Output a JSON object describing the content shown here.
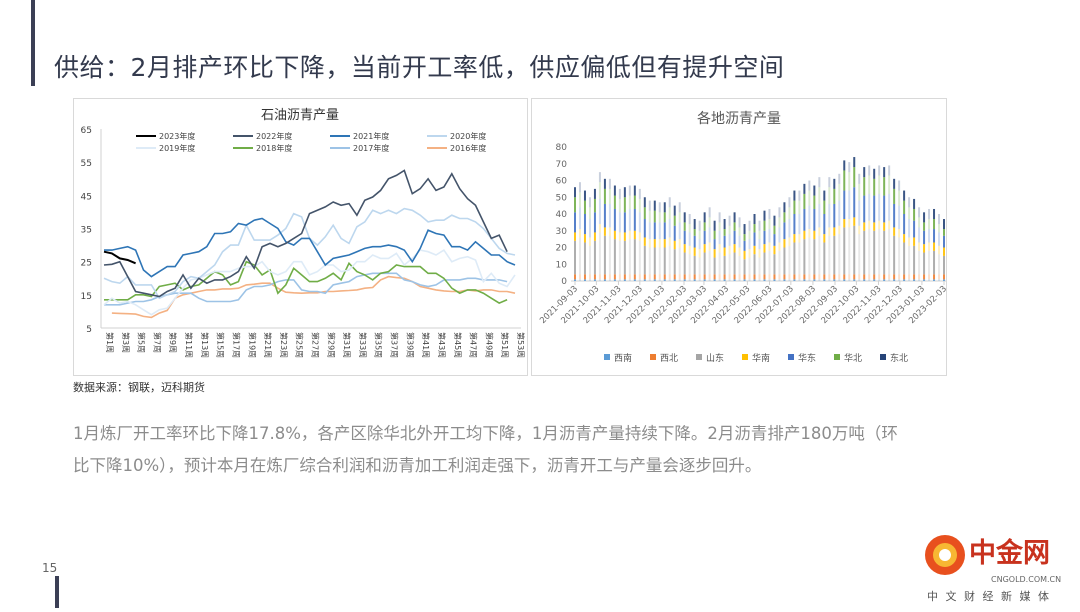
{
  "title": "供给：2月排产环比下降，当前开工率低，供应偏低但有提升空间",
  "source": "数据来源：钢联，迈科期货",
  "paragraph": {
    "line1": "1月炼厂开工率环比下降17.8%，各产区除华北外开工均下降，1月沥青产量持续下降。2月沥青排产180万吨（环",
    "line2": "比下降10%），预计本月在炼厂综合利润和沥青加工利润走强下，沥青开工与产量会逐步回升。"
  },
  "page_number": "15",
  "logo": {
    "name": "中金网",
    "domain": "CNGOLD.COM.CN",
    "tagline": "中 文 财 经 新 媒 体",
    "watermark": "迈科期货"
  },
  "colors": {
    "accent": "#3b3f55"
  },
  "chart_data": [
    {
      "type": "line",
      "title": "石油沥青产量",
      "ylim": [
        5,
        65
      ],
      "yticks": [
        5,
        15,
        25,
        35,
        45,
        55,
        65
      ],
      "grid": false,
      "legend": "top",
      "xticks": [
        "第1周",
        "第3周",
        "第5周",
        "第7周",
        "第9周",
        "第11周",
        "第13周",
        "第15周",
        "第17周",
        "第19周",
        "第21周",
        "第23周",
        "第25周",
        "第27周",
        "第29周",
        "第31周",
        "第33周",
        "第35周",
        "第37周",
        "第39周",
        "第41周",
        "第43周",
        "第45周",
        "第47周",
        "第49周",
        "第51周",
        "第53周"
      ],
      "series": [
        {
          "name": "2023年度",
          "color": "#000000",
          "values": [
            28,
            27.5,
            26,
            25.5,
            24.5
          ]
        },
        {
          "name": "2022年度",
          "color": "#44546a",
          "values": [
            24,
            24.2,
            25,
            20.5,
            16,
            15.5,
            15,
            14.5,
            16,
            17,
            21,
            17,
            20,
            18.5,
            19.5,
            19.5,
            20.5,
            22,
            26.5,
            23,
            29.5,
            30.5,
            29.5,
            30.5,
            32,
            33.5,
            39.5,
            40.5,
            41.5,
            43,
            42,
            42.5,
            39,
            43.5,
            44.5,
            46.5,
            50,
            51,
            52.5,
            45.5,
            47,
            50,
            46.5,
            47.5,
            51.5,
            47,
            44,
            42,
            37,
            32,
            33,
            28
          ]
        },
        {
          "name": "2021年度",
          "color": "#2e75b6",
          "values": [
            28.5,
            28.5,
            29,
            29.5,
            28.5,
            22.5,
            20.5,
            22,
            23.5,
            23.5,
            27,
            27.5,
            28,
            29.5,
            33.5,
            33.5,
            34,
            36.5,
            36,
            37.5,
            38,
            36.5,
            35,
            31,
            30,
            32,
            32,
            28,
            24,
            26,
            26.5,
            27,
            28,
            29,
            29.5,
            29.5,
            30,
            29.5,
            28.5,
            25,
            29,
            34.5,
            33.5,
            33,
            29.5,
            29.5,
            28.5,
            31,
            29,
            27,
            27,
            25,
            24
          ]
        },
        {
          "name": "2020年度",
          "color": "#bdd7ee",
          "values": [
            20,
            19,
            18.5,
            20.5,
            18,
            18,
            18,
            14,
            15,
            16,
            19,
            20.5,
            20,
            22,
            24,
            28,
            30,
            30,
            36,
            31.5,
            31.5,
            31.5,
            33,
            35,
            39.5,
            38.5,
            32,
            30,
            32.5,
            36,
            32,
            30.5,
            35.5,
            37,
            40.5,
            39.5,
            40.5,
            39.5,
            41,
            40.5,
            39,
            37,
            37.5,
            37.5,
            39,
            38,
            38,
            37,
            35,
            32,
            29,
            27.5,
            27
          ]
        },
        {
          "name": "2019年度",
          "color": "#deebf7",
          "values": [
            12,
            14,
            12.5,
            13,
            12,
            10.5,
            9,
            10.5,
            11,
            14,
            17,
            19.5,
            20,
            21,
            22,
            22,
            22,
            23,
            23.5,
            23.5,
            25,
            22,
            21,
            22,
            25,
            25,
            21,
            22,
            24,
            24,
            22,
            22.5,
            25,
            25,
            27,
            26,
            26,
            27.5,
            24,
            26,
            28.5,
            28,
            27,
            28.5,
            25,
            26,
            26.5,
            25.5,
            19,
            21.5,
            18.5,
            17.5,
            21
          ]
        },
        {
          "name": "2018年度",
          "color": "#70ad47",
          "values": [
            13.5,
            13.5,
            13.5,
            13.5,
            15,
            15,
            14.5,
            17.5,
            18,
            18.5,
            16.5,
            17.5,
            18,
            20,
            22,
            21,
            18,
            19,
            25,
            24,
            21,
            22.5,
            15.5,
            18,
            23,
            21,
            19,
            19,
            20,
            21.5,
            19.5,
            24.5,
            22,
            21,
            19.5,
            21.5,
            22,
            24,
            23.5,
            23.5,
            23.5,
            21.5,
            21.5,
            20,
            17,
            15.5,
            16.5,
            16.5,
            15.5,
            14,
            12.5,
            13.5
          ]
        },
        {
          "name": "2017年度",
          "color": "#9dc3e6",
          "values": [
            12,
            12,
            12,
            12.5,
            13,
            13,
            13.5,
            14.5,
            15,
            15.5,
            15.5,
            15.5,
            14,
            13,
            13,
            13,
            13,
            13.5,
            16.5,
            17.5,
            17.5,
            18,
            19,
            19.5,
            19.5,
            16.5,
            16,
            16,
            15.5,
            18,
            18.5,
            19,
            20.5,
            21,
            21.5,
            21.5,
            21.5,
            21.5,
            19.5,
            19,
            18,
            17.5,
            18,
            19.5,
            19.5,
            19.5,
            20,
            20,
            19.5,
            19.5,
            19.5,
            19
          ]
        },
        {
          "name": "2016年度",
          "color": "#f4b183",
          "values": [
            null,
            9.5,
            9.4,
            9.3,
            9.2,
            8.5,
            8.2,
            9.5,
            10.3,
            14,
            15,
            15.5,
            16,
            16.5,
            16.5,
            16.8,
            16.8,
            17,
            18,
            18.2,
            18.5,
            18.5,
            17,
            15.8,
            15.6,
            15.5,
            15.6,
            15.6,
            16,
            16,
            16.2,
            16.3,
            16.5,
            17,
            17.2,
            19.5,
            20.5,
            20.2,
            20,
            19,
            17.5,
            17,
            16.5,
            16.2,
            16,
            16,
            16.5,
            16.2,
            16.5,
            16.5,
            16,
            16,
            15.5
          ]
        }
      ]
    },
    {
      "type": "bar",
      "stacked": true,
      "title": "各地沥青产量",
      "ylim": [
        0,
        80
      ],
      "yticks": [
        0,
        10,
        20,
        30,
        40,
        50,
        60,
        70,
        80
      ],
      "grid": false,
      "legend": "bottom",
      "x_start": "2021-09-03",
      "x_interval": "weekly",
      "xticks": [
        "2021-09-03",
        "2021-10-03",
        "2021-11-03",
        "2021-12-03",
        "2022-01-03",
        "2022-02-03",
        "2022-03-03",
        "2022-04-03",
        "2022-05-03",
        "2022-06-03",
        "2022-07-03",
        "2022-08-03",
        "2022-09-03",
        "2022-10-03",
        "2022-11-03",
        "2022-12-03",
        "2023-01-03",
        "2023-02-03"
      ],
      "series": [
        {
          "name": "西南",
          "color": "#5b9bd5",
          "values": [
            1,
            1,
            1,
            1,
            1,
            1,
            1,
            1,
            1,
            1,
            1,
            1,
            1,
            1,
            1,
            1,
            1,
            1,
            1,
            1,
            1,
            1,
            1,
            1,
            1,
            1,
            1,
            1,
            1,
            1,
            1,
            1,
            1,
            1,
            1,
            1,
            1,
            1,
            1,
            1,
            1,
            1,
            1,
            1,
            1,
            1,
            1,
            1,
            1,
            1,
            1,
            1,
            1,
            1,
            1,
            1,
            1,
            1,
            1,
            1,
            1,
            1,
            1,
            1,
            1,
            1,
            1,
            1,
            1,
            1,
            1,
            1,
            1,
            1,
            1
          ]
        },
        {
          "name": "西北",
          "color": "#ed7d31",
          "values": [
            3,
            3,
            3,
            3,
            3,
            3,
            3,
            3,
            3,
            3,
            3,
            3,
            3,
            3,
            3,
            3,
            3,
            3,
            3,
            3,
            3,
            3,
            3,
            3,
            3,
            3,
            3,
            3,
            3,
            3,
            3,
            3,
            3,
            3,
            3,
            3,
            3,
            3,
            3,
            3,
            3,
            3,
            3,
            3,
            3,
            3,
            3,
            3,
            3,
            3,
            3,
            3,
            3,
            3,
            3,
            3,
            3,
            3,
            3,
            3,
            3,
            3,
            3,
            3,
            3,
            3,
            3,
            3,
            3,
            3,
            3,
            3,
            3,
            3,
            3
          ]
        },
        {
          "name": "山东",
          "color": "#a5a5a5",
          "values": [
            20,
            22,
            19,
            17,
            20,
            25,
            23,
            23,
            21,
            20,
            20,
            21,
            21,
            20,
            17,
            16,
            16,
            16,
            16,
            17,
            15,
            16,
            13,
            12,
            11,
            10,
            13,
            14,
            10,
            13,
            11,
            12,
            13,
            11,
            9,
            10,
            12,
            10,
            13,
            14,
            12,
            14,
            16,
            17,
            19,
            19,
            21,
            22,
            21,
            23,
            19,
            23,
            23,
            24,
            28,
            28,
            29,
            24,
            26,
            27,
            26,
            27,
            26,
            27,
            23,
            22,
            19,
            17,
            17,
            14,
            13,
            14,
            14,
            12,
            11
          ]
        },
        {
          "name": "华南",
          "color": "#ffc000",
          "values": [
            5,
            5,
            5,
            5,
            5,
            5,
            5,
            5,
            5,
            5,
            5,
            5,
            5,
            5,
            5,
            5,
            5,
            5,
            5,
            5,
            5,
            5,
            5,
            5,
            5,
            5,
            5,
            5,
            5,
            5,
            5,
            5,
            5,
            5,
            5,
            5,
            5,
            5,
            5,
            5,
            5,
            5,
            5,
            5,
            5,
            5,
            5,
            5,
            5,
            5,
            5,
            5,
            5,
            5,
            5,
            5,
            5,
            5,
            5,
            5,
            5,
            5,
            5,
            5,
            5,
            5,
            5,
            5,
            5,
            5,
            5,
            5,
            5,
            5,
            5
          ]
        },
        {
          "name": "华东",
          "color": "#4472c4",
          "values": [
            12,
            13,
            12,
            11,
            12,
            15,
            14,
            14,
            13,
            12,
            12,
            13,
            13,
            12,
            11,
            10,
            10,
            10,
            10,
            11,
            9,
            10,
            8,
            8,
            7,
            6,
            8,
            9,
            6,
            8,
            7,
            7,
            8,
            7,
            6,
            6,
            8,
            6,
            8,
            8,
            7,
            9,
            10,
            11,
            12,
            12,
            13,
            14,
            13,
            14,
            12,
            14,
            14,
            15,
            17,
            17,
            18,
            15,
            16,
            16,
            16,
            16,
            16,
            16,
            14,
            14,
            12,
            11,
            10,
            9,
            8,
            8,
            8,
            8,
            7
          ]
        },
        {
          "name": "华北",
          "color": "#70ad47",
          "values": [
            9,
            9,
            8,
            7,
            8,
            10,
            9,
            9,
            8,
            8,
            9,
            8,
            8,
            8,
            7,
            7,
            7,
            6,
            6,
            7,
            6,
            6,
            5,
            5,
            4,
            5,
            5,
            6,
            5,
            5,
            4,
            5,
            5,
            5,
            4,
            5,
            5,
            5,
            6,
            6,
            5,
            6,
            6,
            7,
            8,
            8,
            9,
            9,
            8,
            10,
            8,
            10,
            9,
            10,
            12,
            11,
            12,
            10,
            11,
            11,
            10,
            11,
            11,
            11,
            9,
            9,
            8,
            7,
            7,
            6,
            5,
            6,
            6,
            5,
            4
          ]
        },
        {
          "name": "东北",
          "color": "#264478",
          "values": [
            6,
            6,
            6,
            6,
            6,
            6,
            6,
            6,
            6,
            6,
            6,
            6,
            6,
            6,
            6,
            6,
            6,
            6,
            6,
            6,
            6,
            6,
            6,
            6,
            6,
            6,
            6,
            6,
            6,
            6,
            6,
            6,
            6,
            6,
            6,
            6,
            6,
            6,
            6,
            6,
            6,
            6,
            6,
            6,
            6,
            6,
            6,
            6,
            6,
            6,
            6,
            6,
            6,
            6,
            6,
            6,
            6,
            6,
            6,
            6,
            6,
            6,
            6,
            6,
            6,
            6,
            6,
            6,
            6,
            6,
            6,
            6,
            6,
            6,
            6
          ]
        }
      ]
    }
  ]
}
